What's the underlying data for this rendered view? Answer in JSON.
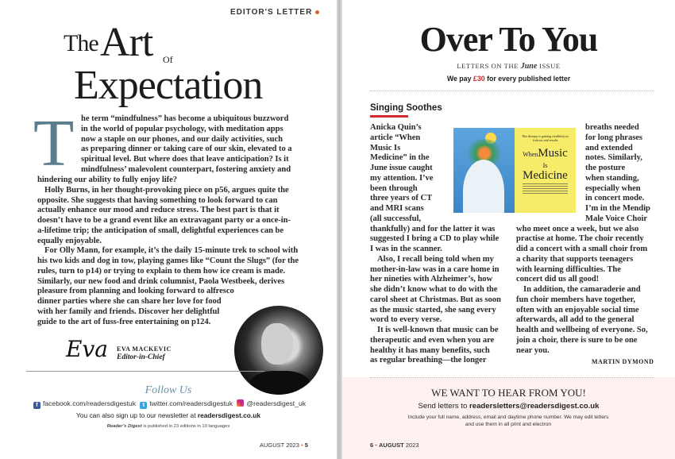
{
  "left_page": {
    "section_label": "EDITOR'S LETTER",
    "title": {
      "the": "The",
      "art": "Art",
      "of": "Of",
      "expectation": "Expectation"
    },
    "drop_cap": "T",
    "indented_lines": [
      "he term “mindfulness” has become a ubiquitous buzzword",
      "in the world of popular psychology, with meditation apps",
      "now a staple on our phones, and our daily activities, such",
      "as preparing dinner or taking care of our skin, elevated to a",
      "spiritual level. But where does that leave anticipation? Is it",
      "mindfulness’ malevolent counterpart, fostering anxiety and"
    ],
    "body_paragraphs": [
      [
        "hindering our ability to fully enjoy life?"
      ],
      [
        "Holly Burns, in her thought-provoking piece on p56, argues quite the",
        "opposite. She suggests that having something to look forward to can",
        "actually enhance our mood and reduce stress. The best part is that it",
        "doesn’t have to be a grand event like an extravagant party or a once-in-",
        "a-lifetime trip; the anticipation of small, delightful experiences can be",
        "equally enjoyable."
      ],
      [
        "For Olly Mann, for example, it’s the daily 15-minute trek to school with",
        "his two kids and dog in tow, playing games like “Count the Slugs” (for the",
        "rules, turn to p14) or trying to explain to them how ice cream is made.",
        "Similarly, our new food and drink columnist, Paola Westbeek, derives",
        "pleasure from planning and looking forward to alfresco",
        "dinner parties where she can share her love for food",
        "with her family and friends. Discover her delightful",
        "guide to the art of fuss-free entertaining on p124."
      ]
    ],
    "signature": "Eva",
    "editor_name": "EVA MACKEVIC",
    "editor_role": "Editor-in-Chief",
    "follow_us": "Follow Us",
    "social": {
      "facebook": "facebook.com/readersdigestuk",
      "twitter": "twitter.com/readersdigestuk",
      "instagram": "@readersdigest_uk"
    },
    "newsletter_text": "You can also sign up to our newsletter at",
    "newsletter_link": "readersdigest.co.uk",
    "editions_brand": "Reader’s Digest",
    "editions_text": "is published in 23 editions in 10 languages",
    "folio": {
      "month": "AUGUST 2023",
      "sep": "•",
      "page": "5"
    }
  },
  "right_page": {
    "title": "Over To You",
    "subtitle_pre": "LETTERS ON THE",
    "subtitle_month": "June",
    "subtitle_post": "ISSUE",
    "pay_pre": "We pay",
    "pay_amount": "£30",
    "pay_post": "for every published letter",
    "letter": {
      "headline": "Singing Soothes",
      "col1": [
        [
          "Anicka Quin’s",
          "article “When",
          "Music Is",
          "Medicine” in the",
          "June issue caught",
          "my attention. I’ve",
          "been through",
          "three years of CT",
          "and MRI scans",
          "(all successful,",
          "thankfully) and for the latter it was",
          "suggested I bring a CD to play while",
          "I was in the scanner."
        ],
        [
          "Also, I recall being told when my",
          "mother-in-law was in a care home in",
          "her nineties with Alzheimer’s, how",
          "she didn’t know what to do with the",
          "carol sheet at Christmas. But as soon",
          "as the music started, she sang every",
          "word to every verse."
        ],
        [
          "It is well-known that music can be",
          "therapeutic and even when you are",
          "healthy it has many benefits, such",
          "as regular breathing—the longer"
        ]
      ],
      "col2_top": [
        [
          "breaths needed",
          "for long phrases",
          "and extended",
          "notes. Similarly,",
          "the posture",
          "when standing,",
          "especially when",
          "in concert mode.",
          "I’m in the Mendip",
          "Male Voice Choir"
        ]
      ],
      "col2_bottom": [
        [
          "who meet once a week, but we also",
          "practise at home. The choir recently",
          "did a concert with a small choir from",
          "a charity that supports teenagers",
          "with learning difficulties. The",
          "concert did us all good!"
        ],
        [
          "In addition, the camaraderie and",
          "fun choir members have together,",
          "often with an enjoyable social time",
          "afterwards, all add to the general",
          "health and wellbeing of everyone. So,",
          "join a choir, there is sure to be one",
          "near you."
        ]
      ],
      "signature": "MARTIN DYMOND",
      "image": {
        "tagline": "This therapy is gaining credibility as it shows real results",
        "title_when": "When",
        "title_music": "Music",
        "title_is": "Is",
        "title_medicine": "Medicine"
      }
    },
    "callout": {
      "heading": "WE WANT TO HEAR FROM YOU!",
      "send_pre": "Send letters to",
      "email": "readersletters@readersdigest.co.uk",
      "instructions_1": "Include your full name, address, email and daytime phone number. We may edit letters",
      "instructions_2": "and use them in all print and electron"
    },
    "folio": {
      "page": "6",
      "sep": "•",
      "month": "AUGUST",
      "year": "2023"
    }
  },
  "colors": {
    "accent_orange": "#e0622f",
    "accent_red": "#d12b2b",
    "dropcap_teal": "#5b7e8e",
    "follow_blue": "#6c8fa5",
    "callout_bg": "#fdf2f1"
  }
}
